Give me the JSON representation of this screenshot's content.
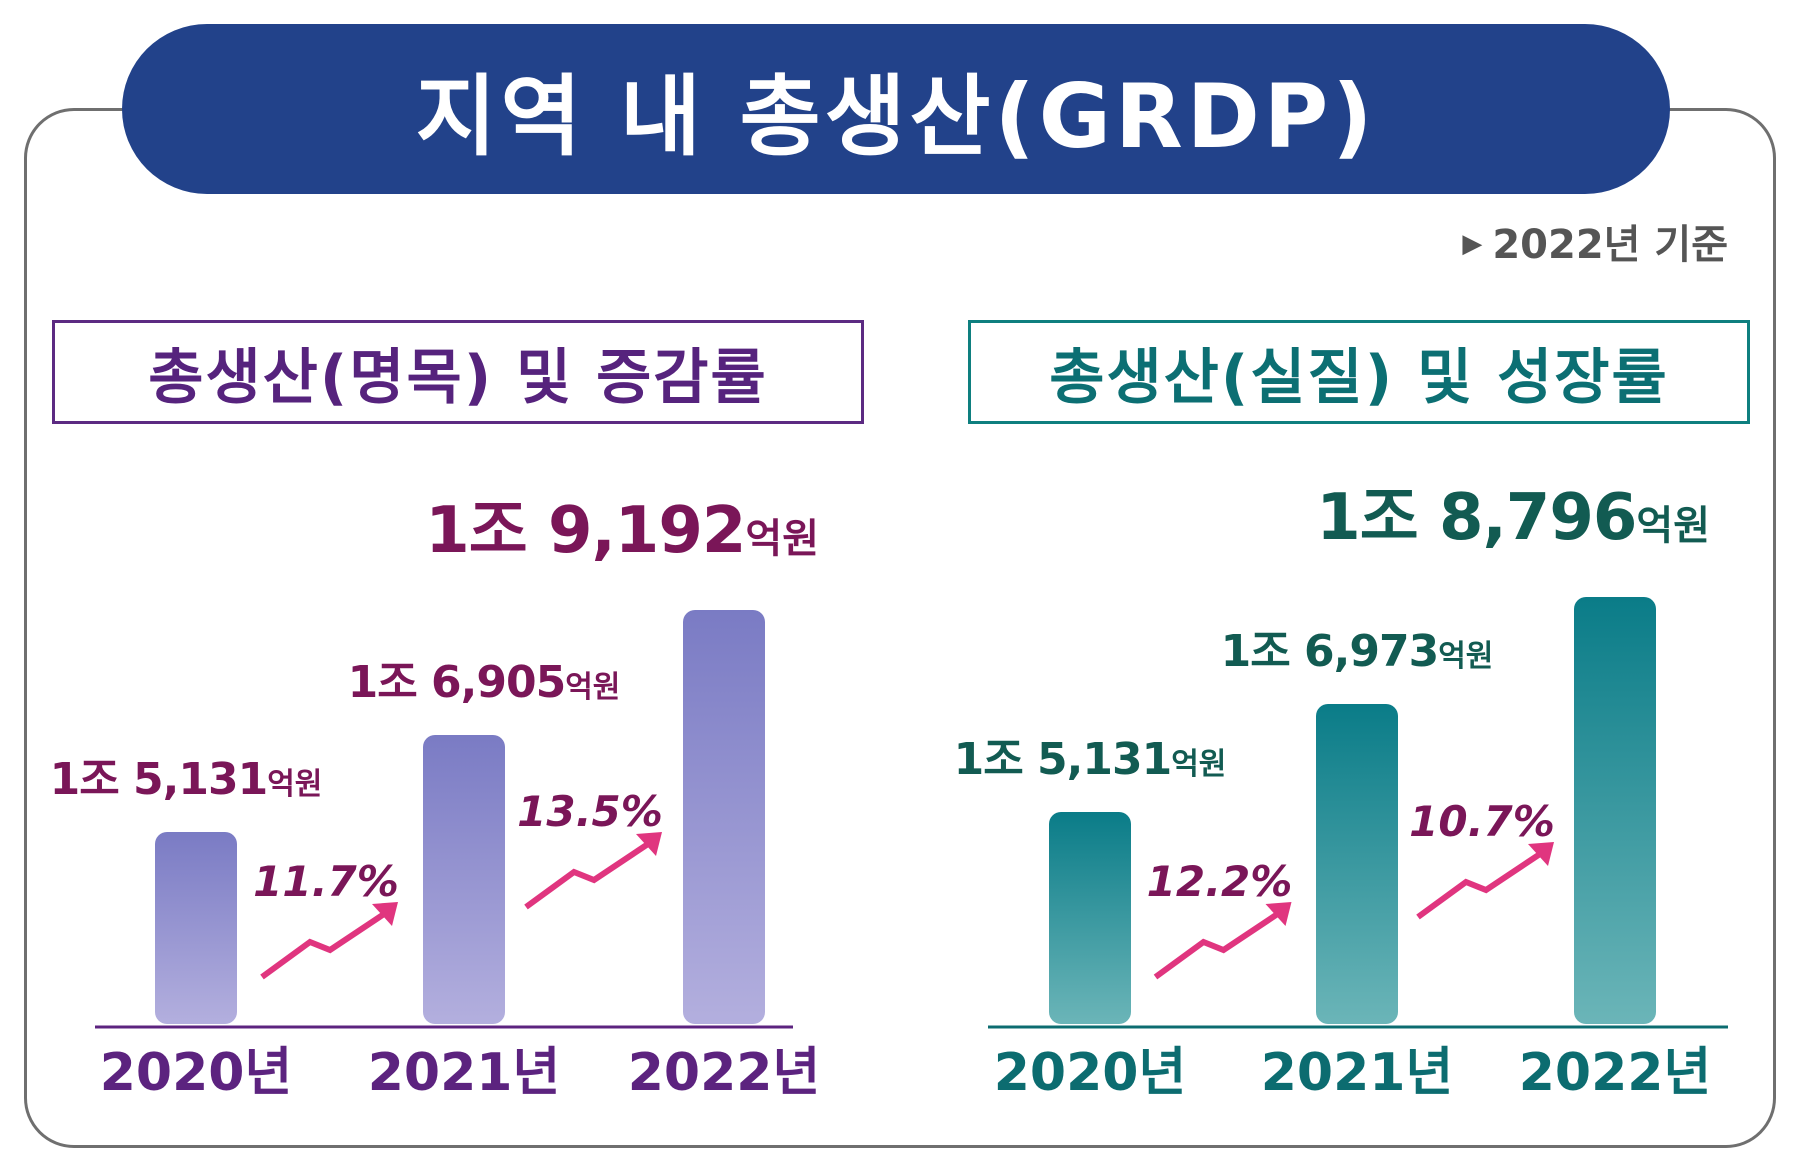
{
  "title": "지역 내 총생산(GRDP)",
  "basis": "2022년 기준",
  "panels": [
    {
      "heading": "총생산(명목) 및 증감률"
    },
    {
      "heading": "총생산(실질) 및 성장률"
    }
  ],
  "colors": {
    "title_bg": "#22428a",
    "nominal_bar_top": "#7a7bc4",
    "nominal_bar_bottom": "#b3afde",
    "nominal_text": "#7a1658",
    "real_bar_top": "#0a7c88",
    "real_bar_bottom": "#6bb5b8",
    "real_text": "#125b52",
    "growth_arrow": "#e0357f"
  },
  "chart_data": [
    {
      "type": "bar",
      "title": "총생산(명목) 및 증감률",
      "categories": [
        "2020년",
        "2021년",
        "2022년"
      ],
      "values": [
        15131,
        16905,
        19192
      ],
      "value_labels": [
        {
          "main": "1조 5,131",
          "unit": "억원"
        },
        {
          "main": "1조 6,905",
          "unit": "억원"
        },
        {
          "main": "1조 9,192",
          "unit": "억원"
        }
      ],
      "growth_rates": [
        "11.7%",
        "13.5%"
      ],
      "ylim": [
        0,
        20000
      ],
      "legend": "none",
      "grid": false
    },
    {
      "type": "bar",
      "title": "총생산(실질) 및 성장률",
      "categories": [
        "2020년",
        "2021년",
        "2022년"
      ],
      "values": [
        15131,
        16973,
        18796
      ],
      "value_labels": [
        {
          "main": "1조 5,131",
          "unit": "억원"
        },
        {
          "main": "1조 6,973",
          "unit": "억원"
        },
        {
          "main": "1조 8,796",
          "unit": "억원"
        }
      ],
      "growth_rates": [
        "12.2%",
        "10.7%"
      ],
      "ylim": [
        0,
        20000
      ],
      "legend": "none",
      "grid": false
    }
  ]
}
